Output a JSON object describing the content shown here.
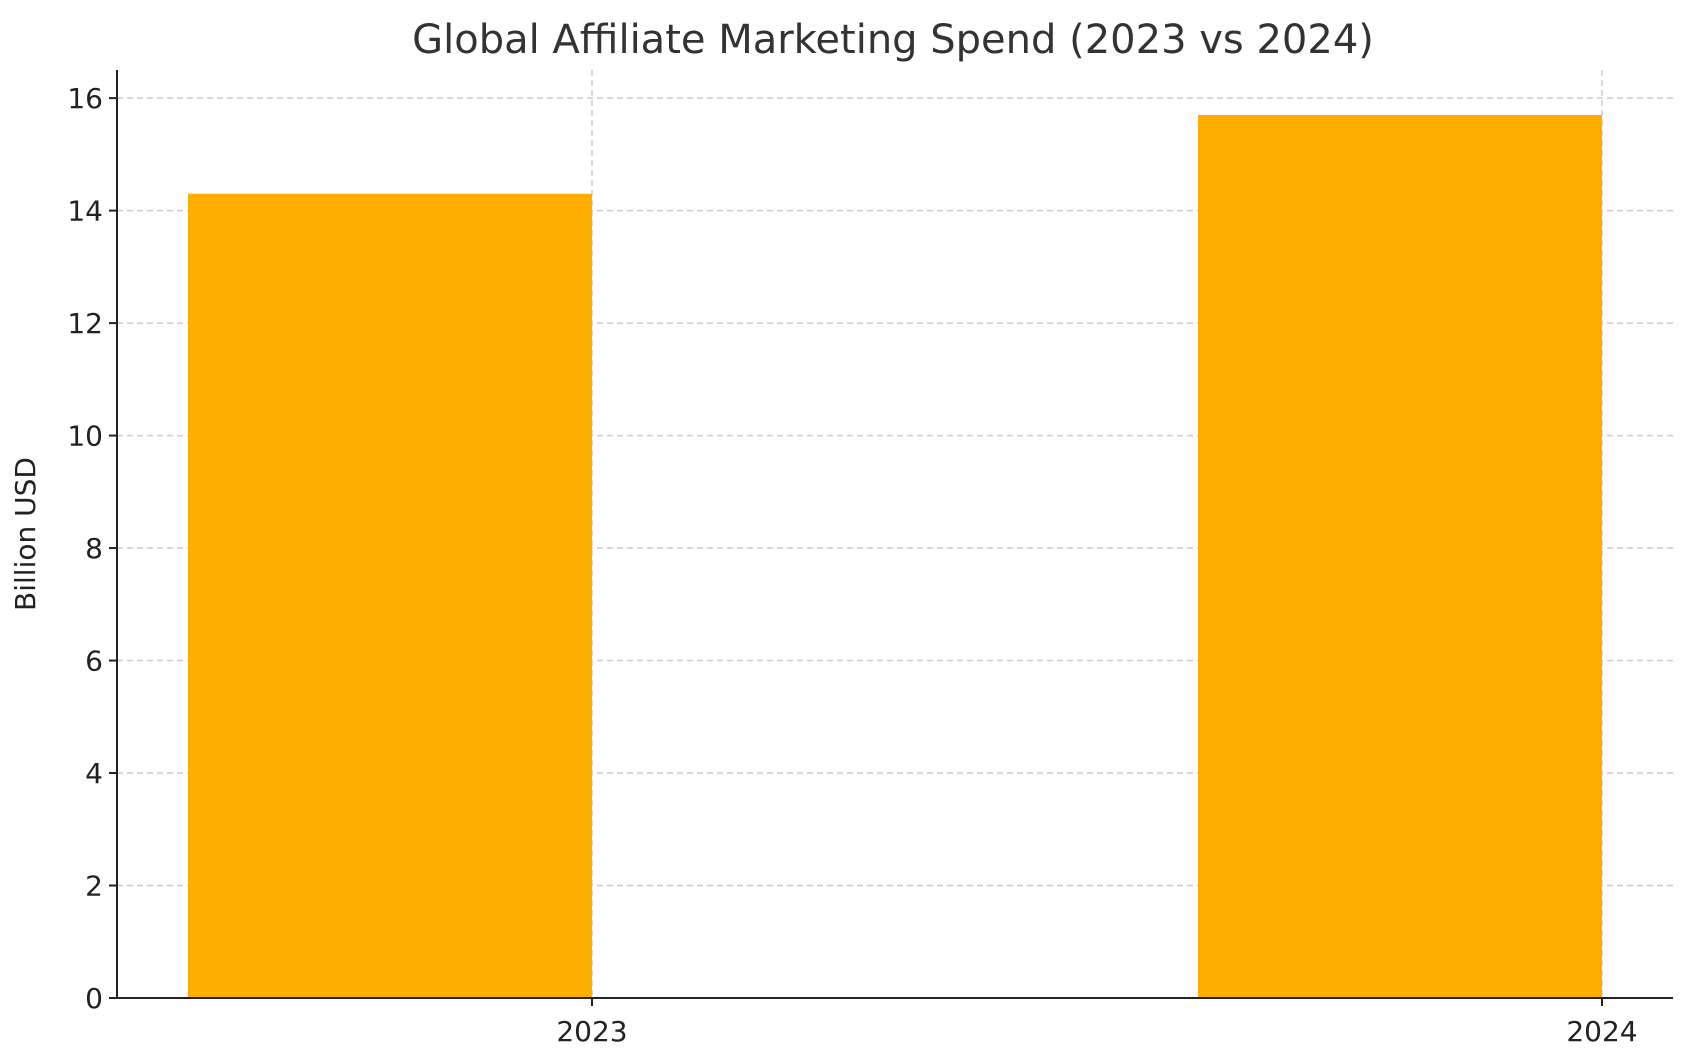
{
  "chart_data": {
    "type": "bar",
    "title": "Global Affiliate Marketing Spend (2023 vs 2024)",
    "xlabel": "",
    "ylabel": "Billion USD",
    "categories": [
      "2023",
      "2024"
    ],
    "values": [
      14.3,
      15.7
    ],
    "ylim": [
      0,
      16.5
    ],
    "yticks": [
      0,
      2,
      4,
      6,
      8,
      10,
      12,
      14,
      16
    ],
    "grid": true,
    "bar_color": "#FFAE00"
  }
}
